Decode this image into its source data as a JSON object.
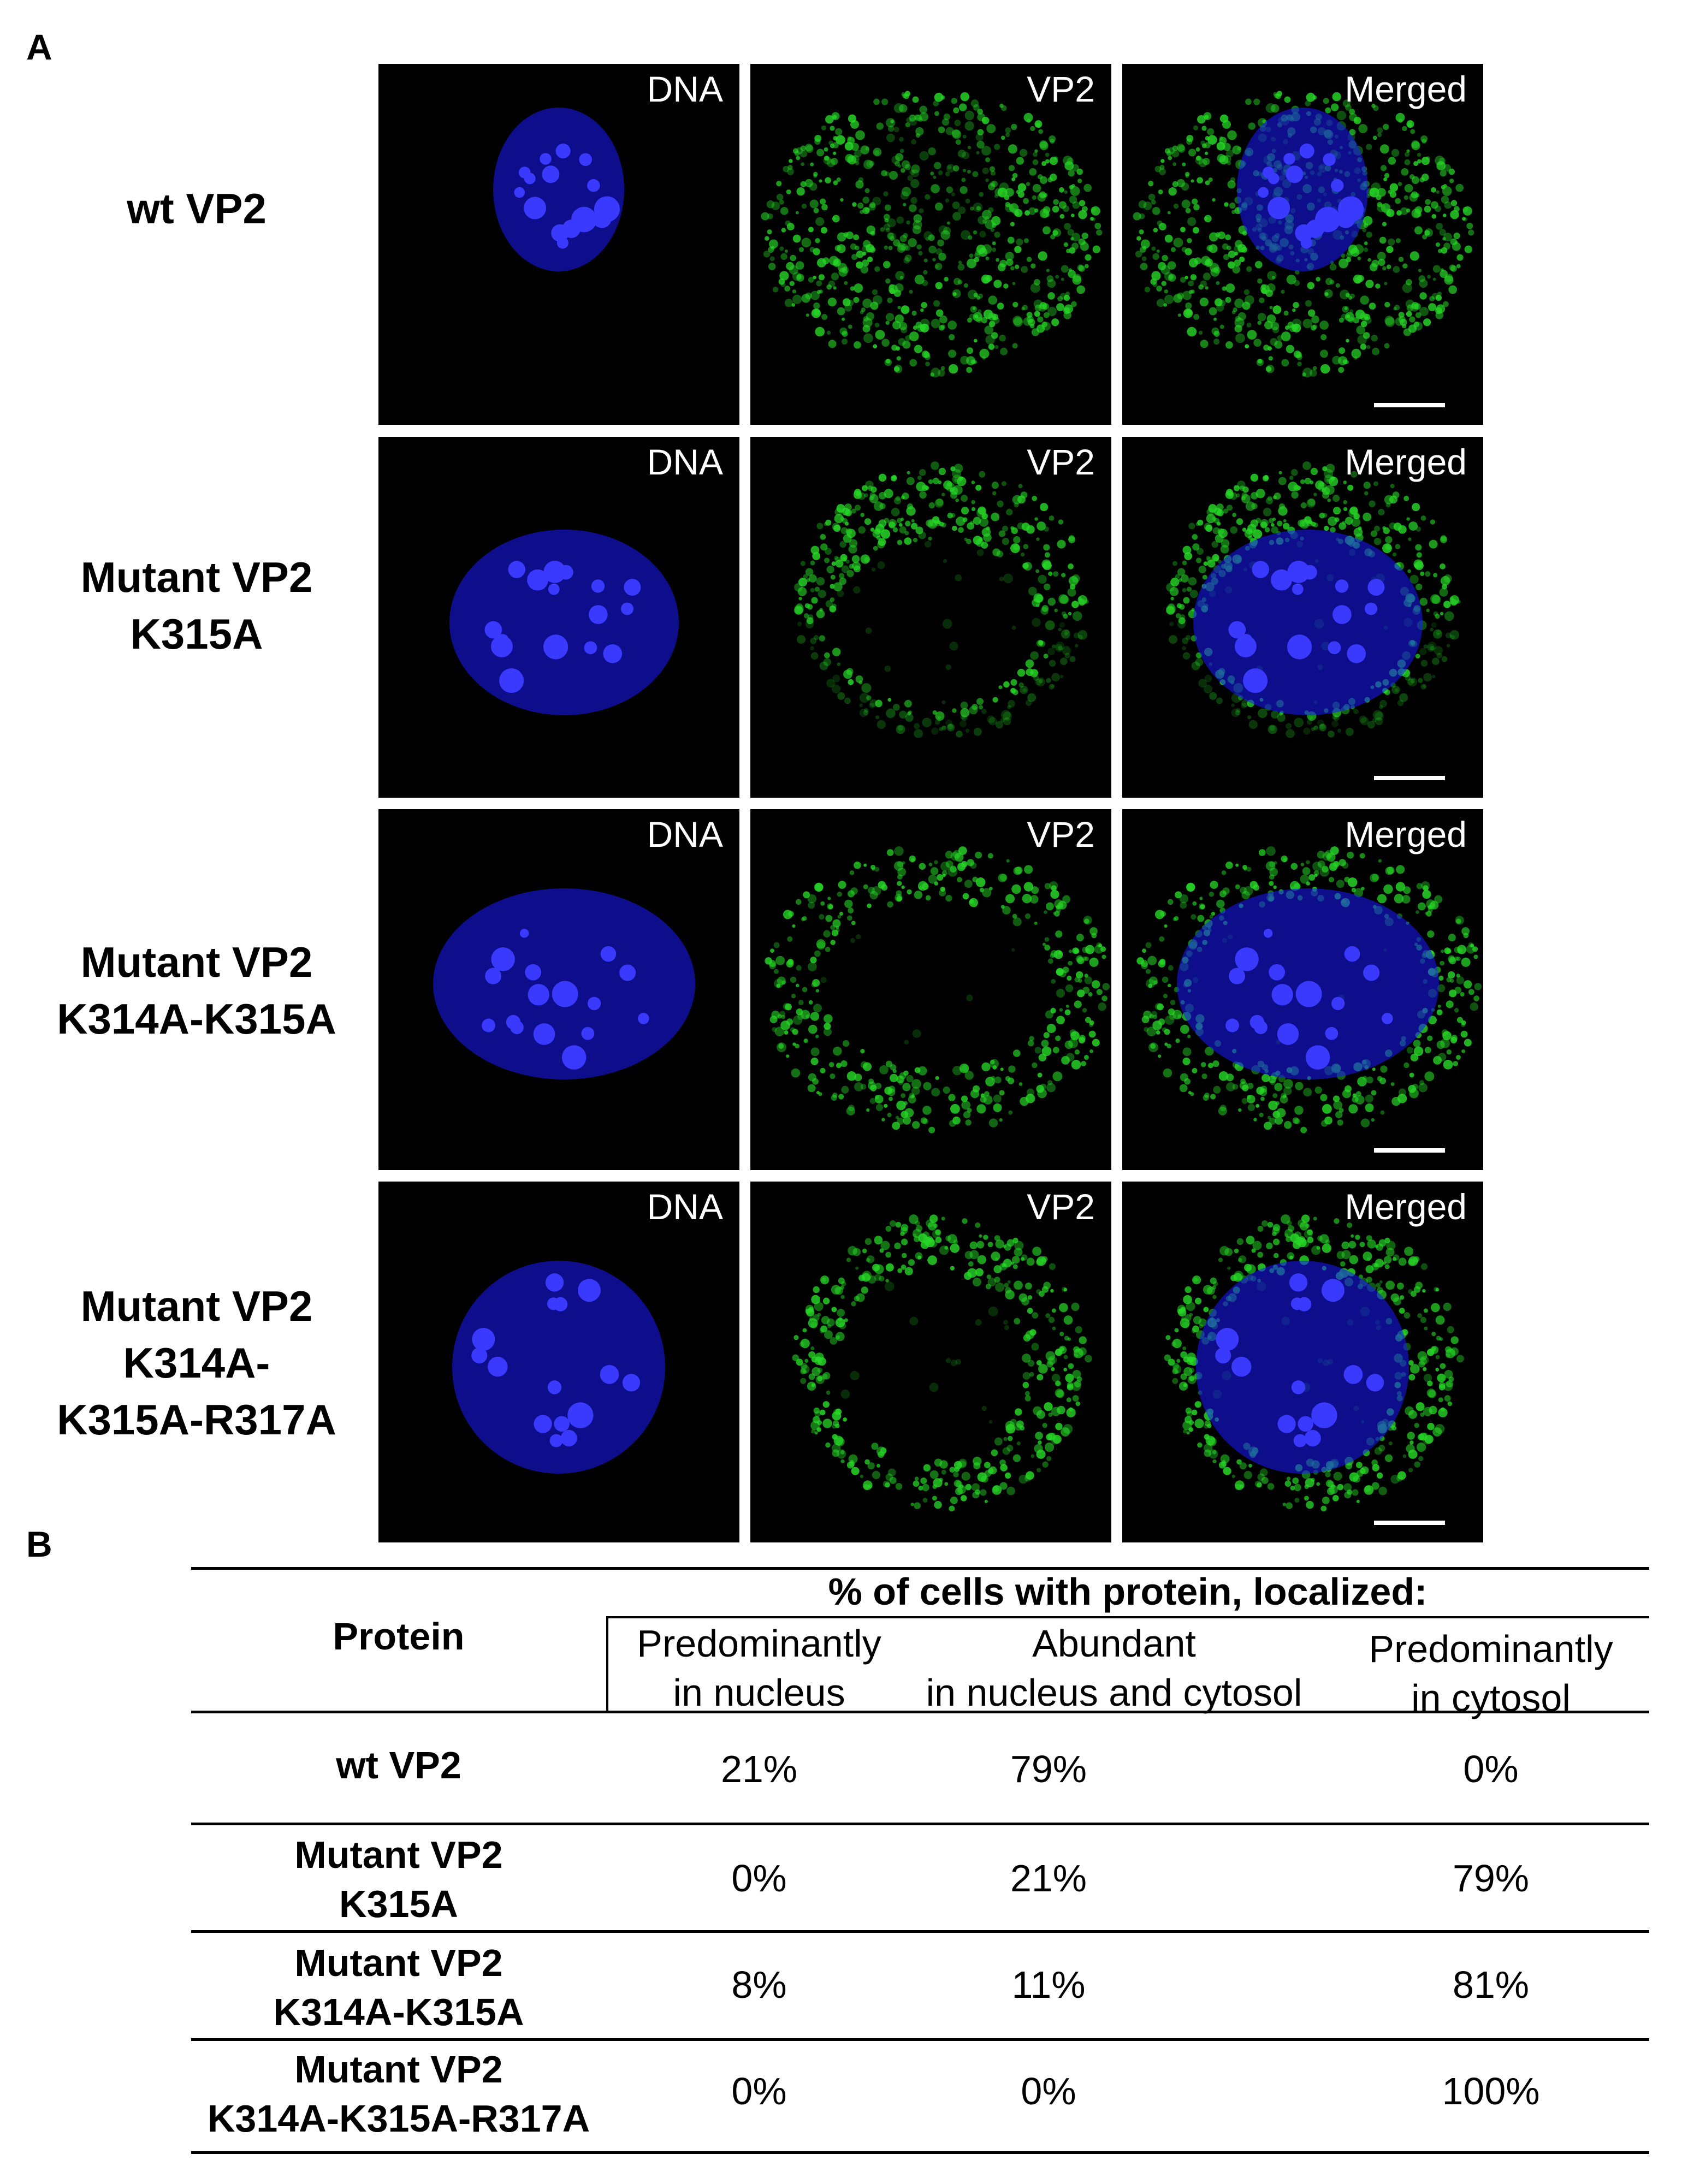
{
  "panel_a": {
    "letter": "A",
    "columns": [
      "DNA",
      "VP2",
      "Merged"
    ],
    "rows": [
      {
        "label_lines": [
          "wt VP2"
        ],
        "nucleus_stain": "uniform",
        "vp2_pattern": "diffuse"
      },
      {
        "label_lines": [
          "Mutant VP2",
          "K315A"
        ],
        "nucleus_stain": "uniform",
        "vp2_pattern": "cytosolic-crescent"
      },
      {
        "label_lines": [
          "Mutant VP2",
          "K314A-K315A"
        ],
        "nucleus_stain": "uniform",
        "vp2_pattern": "cytosolic-ring"
      },
      {
        "label_lines": [
          "Mutant VP2",
          "K314A-",
          "K315A-R317A"
        ],
        "nucleus_stain": "uniform",
        "vp2_pattern": "cytosolic-ring"
      }
    ],
    "colors": {
      "dna": "#1a1aff",
      "vp2": "#22dd22",
      "background": "#000000"
    }
  },
  "panel_b": {
    "letter": "B",
    "header_protein": "Protein",
    "header_group": "% of cells with protein, localized:",
    "subheaders": [
      [
        "Predominantly",
        "in nucleus"
      ],
      [
        "Abundant",
        "in nucleus and cytosol"
      ],
      [
        "Predominantly",
        "in cytosol"
      ]
    ],
    "rows": [
      {
        "protein_lines": [
          "wt VP2"
        ],
        "values": [
          "21%",
          "79%",
          "0%"
        ]
      },
      {
        "protein_lines": [
          "Mutant VP2",
          "K315A"
        ],
        "values": [
          "0%",
          "21%",
          "79%"
        ]
      },
      {
        "protein_lines": [
          "Mutant VP2",
          "K314A-K315A"
        ],
        "values": [
          "8%",
          "11%",
          "81%"
        ]
      },
      {
        "protein_lines": [
          "Mutant VP2",
          "K314A-K315A-R317A"
        ],
        "values": [
          "0%",
          "0%",
          "100%"
        ]
      }
    ]
  }
}
